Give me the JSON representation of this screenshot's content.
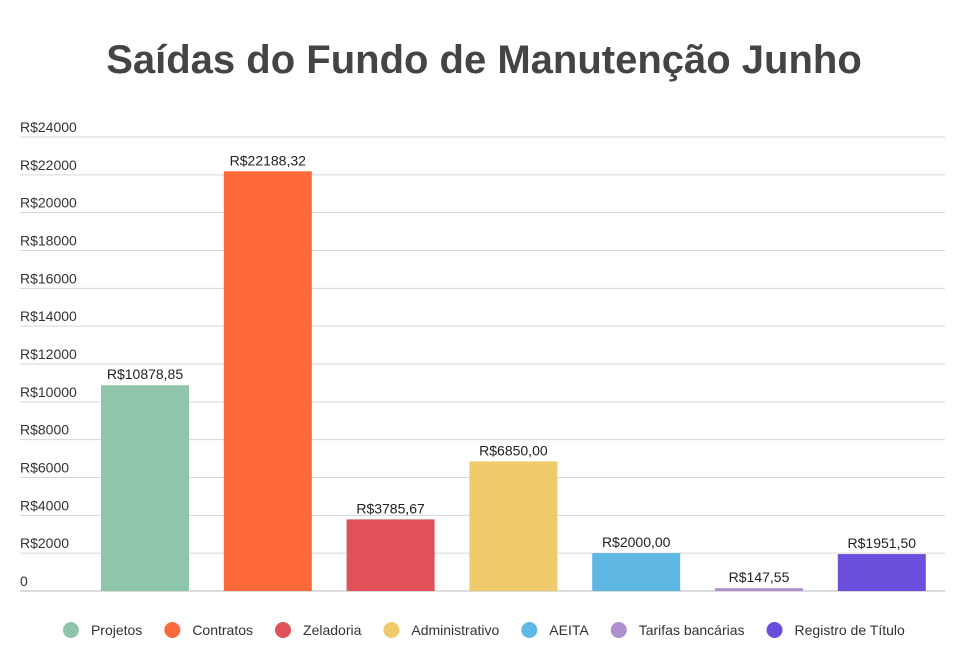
{
  "chart_data": {
    "type": "bar",
    "title": "Saídas do Fundo de Manutenção Junho",
    "xlabel": "",
    "ylabel": "",
    "ylim": [
      0,
      24000
    ],
    "y_ticks": [
      0,
      2000,
      4000,
      6000,
      8000,
      10000,
      12000,
      14000,
      16000,
      18000,
      20000,
      22000,
      24000
    ],
    "y_tick_labels": [
      "0",
      "R$2000",
      "R$4000",
      "R$6000",
      "R$8000",
      "R$10000",
      "R$12000",
      "R$14000",
      "R$16000",
      "R$18000",
      "R$20000",
      "R$22000",
      "R$24000"
    ],
    "grid": true,
    "legend_position": "bottom",
    "categories": [
      "Projetos",
      "Contratos",
      "Zeladoria",
      "Administrativo",
      "AEITA",
      "Tarifas bancárias",
      "Registro de Título"
    ],
    "values": [
      10878.85,
      22188.32,
      3785.67,
      6850.0,
      2000.0,
      147.55,
      1951.5
    ],
    "data_labels": [
      "R$10878,85",
      "R$22188,32",
      "R$3785,67",
      "R$6850,00",
      "R$2000,00",
      "R$147,55",
      "R$1951,50"
    ],
    "colors": [
      "#8fc5a9",
      "#ff6a3b",
      "#e05257",
      "#f0cb6b",
      "#5fb7e4",
      "#b08fce",
      "#6b4fdc"
    ]
  }
}
